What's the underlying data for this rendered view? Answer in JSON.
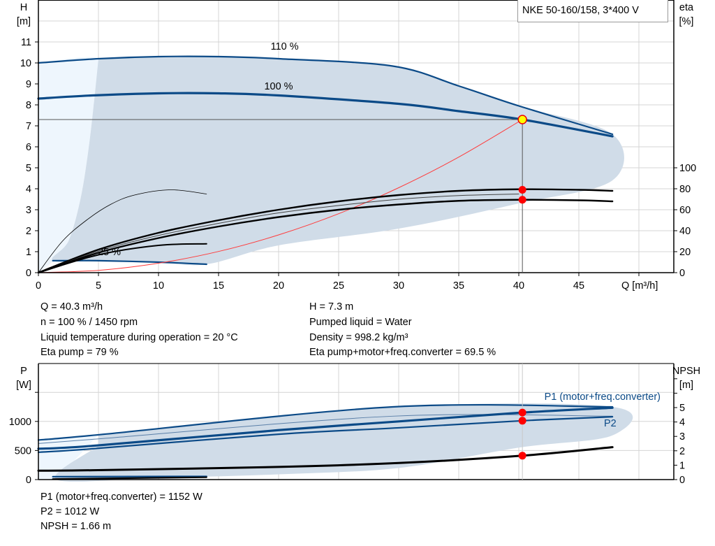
{
  "legend_title": "NKE 50-160/158, 3*400 V",
  "colors": {
    "region": "#d0dce8",
    "region_light": "#eef6fd",
    "curve_blue": "#0b4a87",
    "curve_black": "#000000",
    "system": "#ff3b3b",
    "point_red": "#ff0000",
    "point_yellow": "#ffff00",
    "grid": "#d4d4d4"
  },
  "readouts": {
    "left": [
      "Q = 40.3 m³/h",
      "n = 100 % / 1450 rpm",
      "Liquid temperature during operation = 20 °C",
      "Eta pump = 79 %"
    ],
    "right": [
      "H = 7.3 m",
      "Pumped liquid = Water",
      "Density = 998.2 kg/m³",
      "Eta pump+motor+freq.converter = 69.5 %"
    ],
    "bottom": [
      "P1 (motor+freq.converter) = 1152 W",
      "P2 = 1012 W",
      "NPSH = 1.66 m"
    ]
  },
  "chart_data": [
    {
      "type": "line",
      "xlabel": "Q [m³/h]",
      "ylabel": "H\n[m]",
      "ylabel2": "eta\n[%]",
      "xlim": [
        0,
        53
      ],
      "ylim": [
        0,
        13
      ],
      "y2lim": [
        0,
        260
      ],
      "xticks": [
        0,
        5,
        10,
        15,
        20,
        25,
        30,
        35,
        40,
        45
      ],
      "yticks": [
        0,
        1,
        2,
        3,
        4,
        5,
        6,
        7,
        8,
        9,
        10,
        11
      ],
      "y2ticks": [
        0,
        20,
        40,
        60,
        80,
        100
      ],
      "grid": true,
      "annotations": [
        "110 %",
        "100 %",
        "25 %"
      ],
      "region_light": [
        [
          0,
          10
        ],
        [
          5,
          10.2
        ],
        [
          4.7,
          8.5
        ],
        [
          4.2,
          6
        ],
        [
          3.5,
          3.5
        ],
        [
          2.5,
          1.5
        ],
        [
          1.2,
          0.55
        ],
        [
          0,
          0
        ]
      ],
      "region": [
        [
          5,
          10.2
        ],
        [
          10,
          10.3
        ],
        [
          15,
          10.3
        ],
        [
          20,
          10.2
        ],
        [
          29.5,
          9.85
        ],
        [
          35,
          8.9
        ],
        [
          40,
          7.95
        ],
        [
          47.8,
          6.6
        ],
        [
          47.8,
          4.4
        ],
        [
          40,
          3.3
        ],
        [
          30,
          2.1
        ],
        [
          20,
          1.3
        ],
        [
          14,
          0.4
        ],
        [
          10,
          0.5
        ],
        [
          5,
          0.57
        ],
        [
          1.2,
          0.57
        ],
        [
          2.5,
          1.5
        ],
        [
          3.5,
          3.5
        ],
        [
          4.2,
          6
        ],
        [
          4.7,
          8.5
        ]
      ],
      "series": [
        {
          "name": "110 %",
          "axis": "H",
          "color": "#0b4a87",
          "width": 2.2,
          "values": [
            [
              0,
              10
            ],
            [
              5,
              10.2
            ],
            [
              10,
              10.3
            ],
            [
              15,
              10.3
            ],
            [
              20,
              10.2
            ],
            [
              29.5,
              9.85
            ],
            [
              35,
              8.9
            ],
            [
              40,
              7.95
            ],
            [
              47.8,
              6.6
            ]
          ]
        },
        {
          "name": "100 %",
          "axis": "H",
          "color": "#0b4a87",
          "width": 3.2,
          "values": [
            [
              0,
              8.3
            ],
            [
              4.5,
              8.45
            ],
            [
              10,
              8.55
            ],
            [
              15,
              8.55
            ],
            [
              20,
              8.45
            ],
            [
              30,
              8.05
            ],
            [
              35,
              7.7
            ],
            [
              40.3,
              7.3
            ],
            [
              47.8,
              6.5
            ]
          ]
        },
        {
          "name": "25 %",
          "axis": "H",
          "color": "#0b4a87",
          "width": 2.2,
          "values": [
            [
              1.2,
              0.57
            ],
            [
              5,
              0.57
            ],
            [
              10,
              0.5
            ],
            [
              14,
              0.4
            ]
          ]
        },
        {
          "axis": "H",
          "color": "#ff3b3b",
          "width": 1,
          "values": [
            [
              0,
              0
            ],
            [
              5,
              0.11
            ],
            [
              10,
              0.45
            ],
            [
              15,
              1.01
            ],
            [
              20,
              1.8
            ],
            [
              25,
              2.81
            ],
            [
              30,
              4.05
            ],
            [
              35,
              5.51
            ],
            [
              40.3,
              7.3
            ]
          ]
        },
        {
          "axis": "eta",
          "color": "#000000",
          "width": 2.4,
          "values": [
            [
              0,
              0
            ],
            [
              5,
              22
            ],
            [
              10,
              38
            ],
            [
              15,
              50
            ],
            [
              20,
              60
            ],
            [
              25,
              68
            ],
            [
              30,
              74
            ],
            [
              35,
              78
            ],
            [
              40,
              79.5
            ],
            [
              45,
              79
            ],
            [
              47.8,
              78
            ]
          ]
        },
        {
          "axis": "eta",
          "color": "#444444",
          "width": 1,
          "values": [
            [
              0,
              0
            ],
            [
              5,
              20.5
            ],
            [
              10,
              35.5
            ],
            [
              15,
              47
            ],
            [
              20,
              57
            ],
            [
              25,
              64
            ],
            [
              30,
              70
            ],
            [
              35,
              73.5
            ],
            [
              40,
              75
            ]
          ]
        },
        {
          "axis": "eta",
          "color": "#000000",
          "width": 2.4,
          "values": [
            [
              0,
              0
            ],
            [
              5,
              19
            ],
            [
              10,
              33
            ],
            [
              15,
              44
            ],
            [
              20,
              53
            ],
            [
              25,
              60
            ],
            [
              30,
              65
            ],
            [
              35,
              68.5
            ],
            [
              40,
              69.5
            ],
            [
              45,
              69
            ],
            [
              47.8,
              68
            ]
          ]
        },
        {
          "axis": "eta",
          "color": "#000000",
          "width": 0.8,
          "values": [
            [
              0,
              0
            ],
            [
              2,
              30
            ],
            [
              4,
              50
            ],
            [
              6,
              65
            ],
            [
              8,
              74
            ],
            [
              11,
              79
            ],
            [
              14,
              75
            ]
          ]
        },
        {
          "axis": "eta",
          "color": "#000000",
          "width": 2,
          "values": [
            [
              0,
              0
            ],
            [
              5,
              17
            ],
            [
              10,
              26
            ],
            [
              14,
              27.5
            ]
          ]
        }
      ],
      "operating_point": {
        "Q": 40.3,
        "H": 7.3,
        "eta_pump": 79,
        "eta_total": 69.5
      }
    },
    {
      "type": "line",
      "ylabel": "P\n[W]",
      "ylabel2": "NPSH\n[m]",
      "xlim": [
        0,
        53
      ],
      "ylim": [
        0,
        2000
      ],
      "y2lim": [
        0,
        8
      ],
      "yticks": [
        0,
        500,
        1000
      ],
      "y2ticks": [
        0,
        1,
        2,
        3,
        4,
        5
      ],
      "grid": true,
      "annotations": [
        "P1 (motor+freq.converter)",
        "P2"
      ],
      "region": [
        [
          5,
          770
        ],
        [
          29.5,
          1250
        ],
        [
          47.8,
          1250
        ],
        [
          47.8,
          760
        ],
        [
          40,
          550
        ],
        [
          30,
          200
        ],
        [
          20,
          90
        ],
        [
          10,
          30
        ],
        [
          1.5,
          0
        ],
        [
          5,
          580
        ]
      ],
      "series": [
        {
          "axis": "P",
          "color": "#0b4a87",
          "width": 2.2,
          "values": [
            [
              0,
              680
            ],
            [
              5,
              770
            ],
            [
              29.5,
              1250
            ],
            [
              47.8,
              1250
            ]
          ]
        },
        {
          "axis": "P",
          "color": "#5a7fa8",
          "width": 1,
          "values": [
            [
              0,
              620
            ],
            [
              5,
              700
            ],
            [
              29.5,
              1090
            ],
            [
              47.8,
              1090
            ]
          ]
        },
        {
          "name": "P1 (motor+freq.converter)",
          "axis": "P",
          "color": "#0b4a87",
          "width": 3.2,
          "values": [
            [
              0,
              530
            ],
            [
              4.5,
              580
            ],
            [
              20,
              850
            ],
            [
              30,
              1000
            ],
            [
              40.3,
              1152
            ],
            [
              47.8,
              1235
            ]
          ]
        },
        {
          "name": "P2",
          "axis": "P",
          "color": "#0b4a87",
          "width": 2.2,
          "values": [
            [
              0,
              470
            ],
            [
              4.5,
              530
            ],
            [
              20,
              780
            ],
            [
              30,
              890
            ],
            [
              40.3,
              1012
            ],
            [
              47.8,
              1080
            ]
          ]
        },
        {
          "axis": "NPSH",
          "color": "#000000",
          "width": 3,
          "values": [
            [
              0,
              0.62
            ],
            [
              4.5,
              0.65
            ],
            [
              20,
              0.88
            ],
            [
              30,
              1.15
            ],
            [
              40.3,
              1.66
            ],
            [
              47.8,
              2.25
            ]
          ]
        },
        {
          "axis": "P",
          "color": "#0b4a87",
          "width": 2.2,
          "values": [
            [
              1.2,
              50
            ],
            [
              14,
              55
            ]
          ]
        },
        {
          "axis": "P",
          "color": "#000000",
          "width": 2.2,
          "values": [
            [
              1.2,
              10
            ],
            [
              14,
              40
            ]
          ]
        }
      ],
      "operating_point": {
        "Q": 40.3,
        "P1": 1152,
        "P2": 1012,
        "NPSH": 1.66
      }
    }
  ]
}
